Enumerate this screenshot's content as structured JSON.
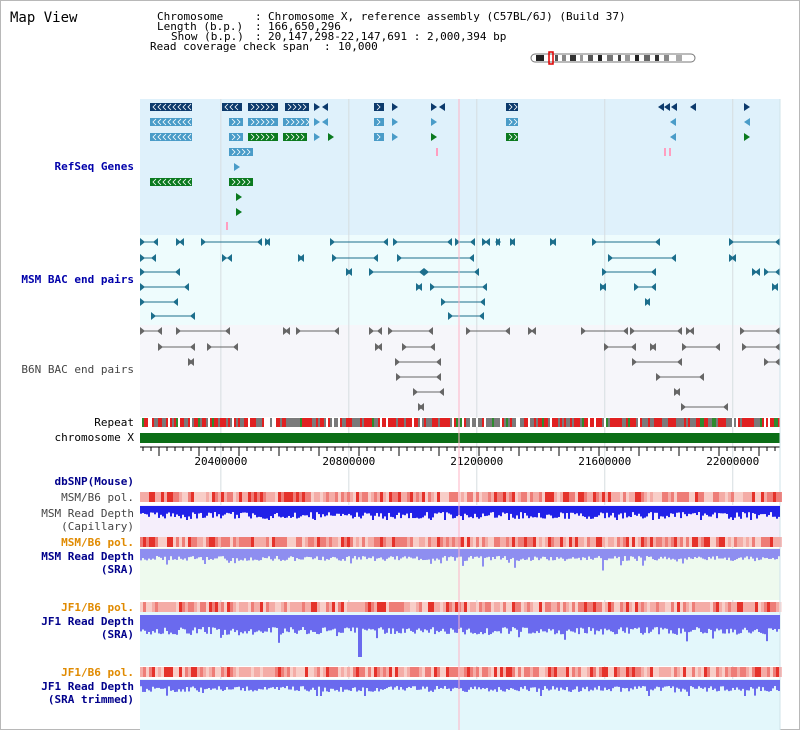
{
  "title": "Map View",
  "info": {
    "chromosome_key": "Chromosome",
    "chromosome_val": "Chromosome X, reference assembly (C57BL/6J) (Build 37)",
    "length_key": "Length (b.p.)",
    "length_val": "166,650,296",
    "show_key": "Show (b.p.)",
    "show_val": "20,147,298-22,147,691 : 2,000,394 bp",
    "coverage_key": "Read coverage check span",
    "coverage_val": "10,000"
  },
  "tracks": {
    "refseq": "RefSeq Genes",
    "msm_bac": "MSM BAC end pairs",
    "b6n_bac": "B6N BAC end pairs",
    "repeat": "Repeat",
    "chromosome": "chromosome X",
    "dbsnp": "dbSNP(Mouse)",
    "msm_pol1": "MSM/B6 pol.",
    "msm_depth_cap_1": "MSM Read Depth",
    "msm_depth_cap_2": "(Capillary)",
    "msm_pol2": "MSM/B6 pol.",
    "msm_depth_sra_1": "MSM Read Depth",
    "msm_depth_sra_2": "(SRA)",
    "jf1_pol1": "JF1/B6 pol.",
    "jf1_depth_sra_1": "JF1 Read Depth",
    "jf1_depth_sra_2": "(SRA)",
    "jf1_pol2": "JF1/B6 pol.",
    "jf1_depth_trim_1": "JF1 Read Depth",
    "jf1_depth_trim_2": "(SRA trimmed)"
  },
  "axis": {
    "ticks": [
      "20400000",
      "20800000",
      "21200000",
      "21600000",
      "22000000"
    ],
    "range": [
      20147298,
      22147691
    ]
  },
  "colors": {
    "refseq_bg": "#dff1fb",
    "bac_bg": "#eefcfd",
    "b6n_bg": "#f6f6fa",
    "gene_dark": "#0c3a6c",
    "gene_mid": "#4a9cc8",
    "gene_green": "#0b7a1f",
    "chrom_green": "#0b6e16"
  }
}
